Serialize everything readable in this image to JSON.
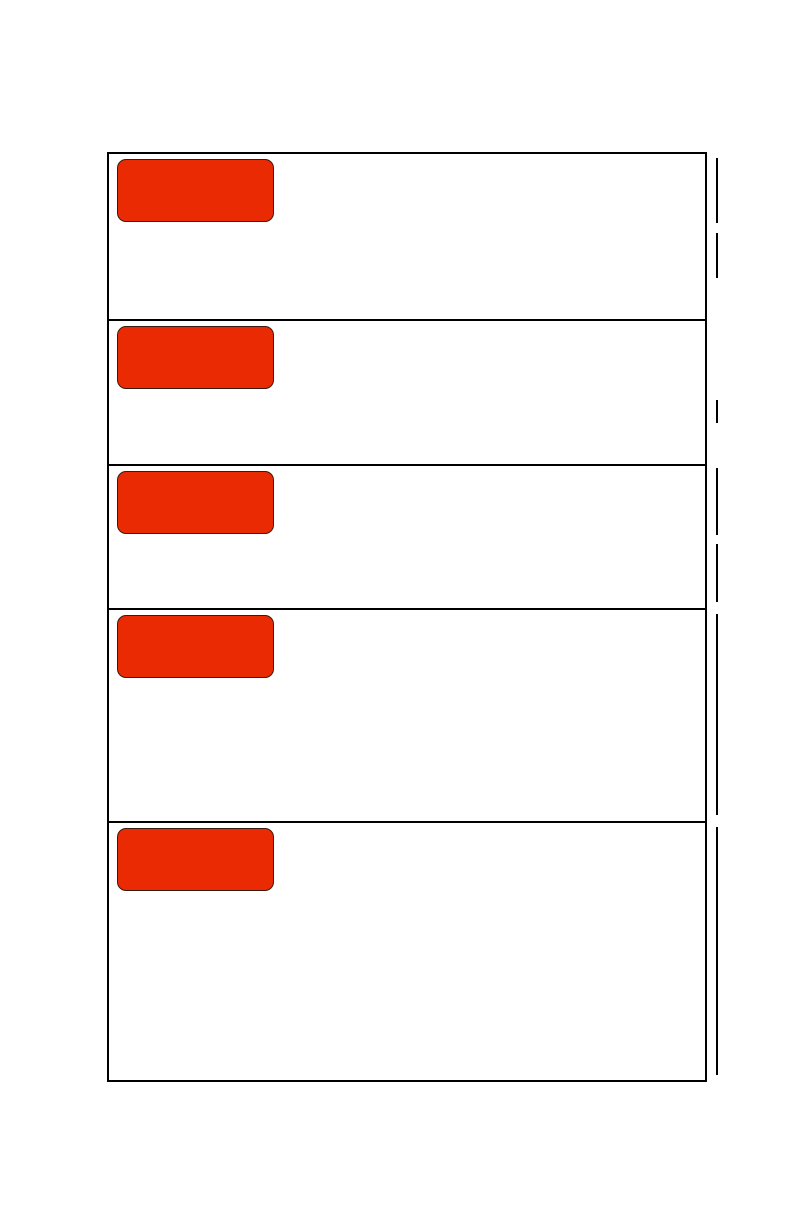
{
  "colors": {
    "label_fill": "#ea2a02",
    "border": "#000000",
    "background": "#ffffff"
  }
}
